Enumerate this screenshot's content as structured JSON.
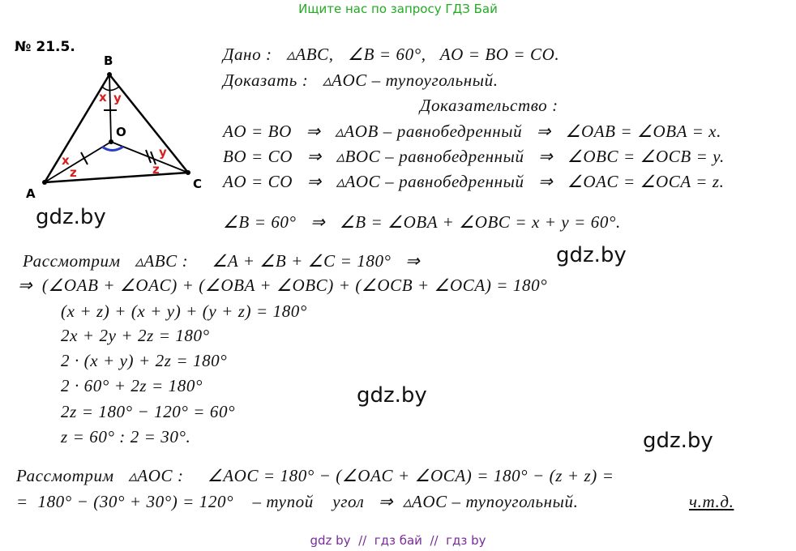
{
  "header": {
    "text": "Ищите нас по запросу ГДЗ Бай"
  },
  "problem": {
    "number": "№ 21.5."
  },
  "figure": {
    "vertices": [
      "B",
      "O",
      "A",
      "C"
    ],
    "angle_marks": [
      "x",
      "y",
      "x",
      "z",
      "y",
      "z"
    ]
  },
  "watermarks": [
    "gdz.by",
    "gdz.by",
    "gdz.by",
    "gdz.by"
  ],
  "solution": {
    "lines": [
      "Дано :   ▵ABC,   ∠B = 60°,   AO = BO = CO.",
      "Доказать :   ▵AOC – тупоугольный.",
      "Доказательство :",
      "AO = BO   ⇒   ▵AOB – равнобедренный   ⇒   ∠OAB = ∠OBA = x.",
      "BO = CO   ⇒   ▵BOC – равнобедренный   ⇒   ∠OBC = ∠OCB = y.",
      "AO = CO   ⇒   ▵AOC – равнобедренный   ⇒   ∠OAC = ∠OCA = z.",
      "∠B = 60°   ⇒   ∠B = ∠OBA + ∠OBC = x + y = 60°.",
      "Рассмотрим   ▵ABC :     ∠A + ∠B + ∠C = 180°   ⇒",
      "⇒  (∠OAB + ∠OAC) + (∠OBA + ∠OBC) + (∠OCB + ∠OCA) = 180°",
      "(x + z) + (x + y) + (y + z) = 180°",
      "2x + 2y + 2z = 180°",
      "2 · (x + y) + 2z = 180°",
      "2 · 60° + 2z = 180°",
      "2z = 180° − 120° = 60°",
      "z = 60° : 2 = 30°.",
      "Рассмотрим   ▵AOC :     ∠AOC = 180° − (∠OAC + ∠OCA) = 180° − (z + z) =",
      "=  180° − (30° + 30°) = 120°    – тупой    угол   ⇒  ▵AOC – тупоугольный."
    ],
    "qed": "ч.т.д."
  },
  "footer": {
    "text": "gdz by  //  гдз бай  //  гдз by"
  }
}
